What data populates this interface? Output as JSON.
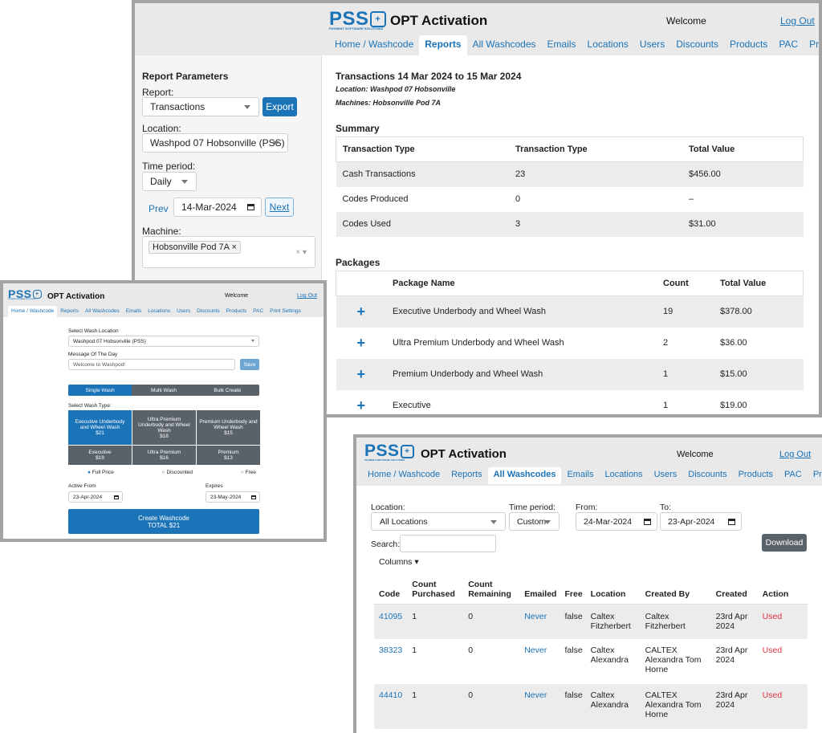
{
  "app": {
    "logo": "PSS",
    "logo_sub": "PAYMENT SOFTWARE SOLUTIONS",
    "title": "OPT Activation",
    "welcome": "Welcome",
    "logout": "Log Out"
  },
  "nav": [
    "Home / Washcode",
    "Reports",
    "All Washcodes",
    "Emails",
    "Locations",
    "Users",
    "Discounts",
    "Products",
    "PAC",
    "Print Settings"
  ],
  "colors": {
    "brand": "#1b73b8",
    "used": "#d9363e",
    "header_bg": "#e9e9e9",
    "gray_btn": "#5a6269"
  },
  "reports": {
    "params_title": "Report Parameters",
    "report_label": "Report:",
    "report_value": "Transactions",
    "export_label": "Export",
    "location_label": "Location:",
    "location_value": "Washpod 07 Hobsonville (PSS)",
    "period_label": "Time period:",
    "period_value": "Daily",
    "prev_label": "Prev",
    "date_value": "14-Mar-2024",
    "next_label": "Next",
    "machine_label": "Machine:",
    "machine_tag": "Hobsonville Pod 7A ×",
    "machine_clear": "× ▾",
    "heading": "Transactions 14 Mar 2024 to 15 Mar 2024",
    "sub_location": "Location: Washpod 07 Hobsonville",
    "sub_machines": "Machines: Hobsonville Pod 7A",
    "summary_title": "Summary",
    "summary_headers": [
      "Transaction Type",
      "Transaction Type",
      "Total Value"
    ],
    "summary_rows": [
      [
        "Cash Transactions",
        "23",
        "$456.00"
      ],
      [
        "Codes Produced",
        "0",
        "–"
      ],
      [
        "Codes Used",
        "3",
        "$31.00"
      ]
    ],
    "packages_title": "Packages",
    "packages_headers": [
      "",
      "Package Name",
      "Count",
      "Total Value"
    ],
    "packages_rows": [
      [
        "+",
        "Executive Underbody and Wheel Wash",
        "19",
        "$378.00"
      ],
      [
        "+",
        "Ultra Premium Underbody and Wheel Wash",
        "2",
        "$36.00"
      ],
      [
        "+",
        "Premium Underbody and Wheel Wash",
        "1",
        "$15.00"
      ],
      [
        "+",
        "Executive",
        "1",
        "$19.00"
      ]
    ]
  },
  "home": {
    "select_location_label": "Select Wash Location",
    "location_value": "Washpod 07 Hobsonville (PSS)",
    "motd_label": "Message Of The Day",
    "motd_value": "Welcome to Washpod!",
    "save_label": "Save",
    "modes": [
      "Single Wash",
      "Multi Wash",
      "Bulk Create"
    ],
    "wash_type_label": "Select Wash Type:",
    "wash_types": [
      [
        "Executive Underbody and Wheel Wash",
        "$21"
      ],
      [
        "Ultra Premium Underbody and Wheel Wash",
        "$18"
      ],
      [
        "Premium Underbody and Wheel Wash",
        "$15"
      ],
      [
        "Executive",
        "$19"
      ],
      [
        "Ultra Premium",
        "$16"
      ],
      [
        "Premium",
        "$13"
      ]
    ],
    "price_options": [
      "Full Price",
      "Discounted",
      "Free"
    ],
    "active_from_label": "Active From",
    "active_from_value": "23-Apr-2024",
    "expires_label": "Expires",
    "expires_value": "23-May-2024",
    "create_label": "Create Washcode",
    "create_total": "TOTAL $21"
  },
  "washcodes": {
    "location_label": "Location:",
    "location_value": "All Locations",
    "period_label": "Time period:",
    "period_value": "Custom",
    "from_label": "From:",
    "from_value": "24-Mar-2024",
    "to_label": "To:",
    "to_value": "23-Apr-2024",
    "search_label": "Search:",
    "download_label": "Download",
    "columns_label": "Columns ▾",
    "headers": [
      "Code",
      "Count Purchased",
      "Count Remaining",
      "Emailed",
      "Free",
      "Location",
      "Created By",
      "Created",
      "Action"
    ],
    "rows": [
      [
        "41095",
        "1",
        "0",
        "Never",
        "false",
        "Caltex Fitzherbert",
        "Caltex Fitzherbert",
        "23rd Apr 2024",
        "Used"
      ],
      [
        "38323",
        "1",
        "0",
        "Never",
        "false",
        "Caltex Alexandra",
        "CALTEX Alexandra Tom Horne",
        "23rd Apr 2024",
        "Used"
      ],
      [
        "44410",
        "1",
        "0",
        "Never",
        "false",
        "Caltex Alexandra",
        "CALTEX Alexandra Tom Horne",
        "23rd Apr 2024",
        "Used"
      ]
    ]
  }
}
